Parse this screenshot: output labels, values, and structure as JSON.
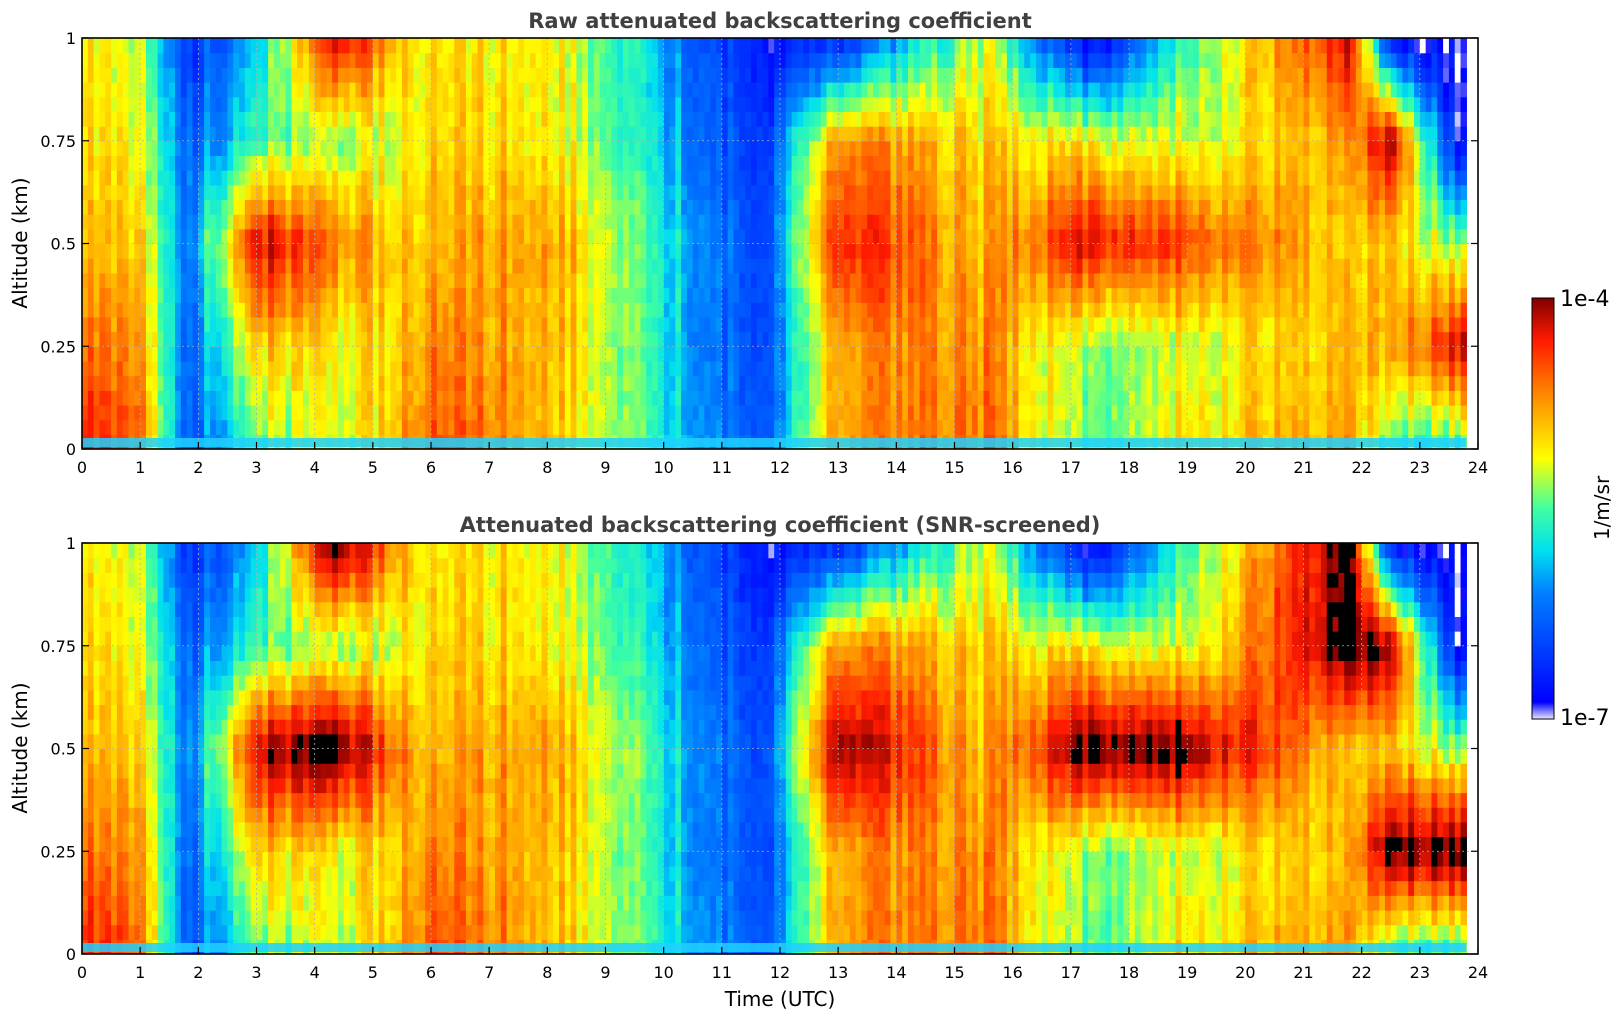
{
  "chart_data": [
    {
      "type": "heatmap",
      "title": "Raw attenuated backscattering coefficient",
      "ylabel": "Altitude (km)",
      "xlabel": "",
      "xlim": [
        0,
        24
      ],
      "ylim": [
        0,
        1
      ],
      "xticks": [
        "0",
        "1",
        "2",
        "3",
        "4",
        "5",
        "6",
        "7",
        "8",
        "9",
        "10",
        "11",
        "12",
        "13",
        "14",
        "15",
        "16",
        "17",
        "18",
        "19",
        "20",
        "21",
        "22",
        "23",
        "24"
      ],
      "yticks": [
        "0",
        "0.25",
        "0.5",
        "0.75",
        "1"
      ],
      "grid": true,
      "data_end_hour": 23.8,
      "profiles_time_utc": [
        0.0,
        1.0,
        1.8,
        3.0,
        4.4,
        6.0,
        8.0,
        11.7,
        13.0,
        15.5,
        17.3,
        19.0,
        21.8,
        22.5,
        23.7
      ],
      "profiles_log10_beta": [
        [
          -4.3,
          -4.6,
          -4.9,
          -5.0,
          -5.1
        ],
        [
          -4.5,
          -4.7,
          -4.9,
          -5.1,
          -5.2
        ],
        [
          -6.4,
          -6.3,
          -6.2,
          -6.3,
          -6.6
        ],
        [
          -5.4,
          -4.9,
          -4.1,
          -5.5,
          -5.8
        ],
        [
          -5.3,
          -5.2,
          -4.7,
          -5.4,
          -4.2
        ],
        [
          -4.5,
          -4.7,
          -4.9,
          -5.0,
          -5.1
        ],
        [
          -4.8,
          -4.8,
          -4.7,
          -5.0,
          -5.0
        ],
        [
          -6.4,
          -6.5,
          -6.5,
          -6.6,
          -6.8
        ],
        [
          -4.7,
          -4.7,
          -4.2,
          -4.6,
          -6.6
        ],
        [
          -4.6,
          -4.7,
          -4.9,
          -5.0,
          -5.2
        ],
        [
          -5.5,
          -5.4,
          -4.2,
          -5.1,
          -7.0
        ],
        [
          -5.0,
          -5.2,
          -4.4,
          -5.2,
          -5.5
        ],
        [
          -4.8,
          -4.9,
          -5.0,
          -4.8,
          -4.2
        ],
        [
          -5.5,
          -4.8,
          -4.9,
          -4.0,
          -6.8
        ],
        [
          -5.6,
          -4.2,
          -5.4,
          -7.0,
          -7.0
        ]
      ]
    },
    {
      "type": "heatmap",
      "title": "Attenuated backscattering coefficient (SNR-screened)",
      "ylabel": "Altitude (km)",
      "xlabel": "Time (UTC)",
      "xlim": [
        0,
        24
      ],
      "ylim": [
        0,
        1
      ],
      "xticks": [
        "0",
        "1",
        "2",
        "3",
        "4",
        "5",
        "6",
        "7",
        "8",
        "9",
        "10",
        "11",
        "12",
        "13",
        "14",
        "15",
        "16",
        "17",
        "18",
        "19",
        "20",
        "21",
        "22",
        "23",
        "24"
      ],
      "yticks": [
        "0",
        "0.25",
        "0.5",
        "0.75",
        "1"
      ],
      "grid": true,
      "data_end_hour": 23.8,
      "saturated_regions_note": "values above the colour range drawn in black",
      "profiles_time_utc": [
        0.0,
        1.0,
        1.8,
        3.0,
        4.4,
        6.0,
        8.0,
        11.7,
        13.0,
        15.5,
        17.3,
        19.0,
        21.8,
        22.5,
        23.7
      ],
      "profiles_log10_beta": [
        [
          -4.3,
          -4.6,
          -4.9,
          -5.0,
          -5.1
        ],
        [
          -4.5,
          -4.7,
          -4.9,
          -5.1,
          -5.2
        ],
        [
          -6.4,
          -6.3,
          -6.2,
          -6.3,
          -6.6
        ],
        [
          -5.4,
          -4.9,
          -4.1,
          -5.5,
          -5.8
        ],
        [
          -5.3,
          -5.2,
          -3.9,
          -5.4,
          -3.9
        ],
        [
          -4.5,
          -4.7,
          -4.9,
          -5.0,
          -5.1
        ],
        [
          -4.8,
          -4.8,
          -4.7,
          -5.0,
          -5.0
        ],
        [
          -6.4,
          -6.5,
          -6.5,
          -6.6,
          -6.8
        ],
        [
          -4.7,
          -4.7,
          -3.9,
          -4.6,
          -6.6
        ],
        [
          -4.6,
          -4.7,
          -4.9,
          -5.0,
          -5.2
        ],
        [
          -5.5,
          -5.4,
          -3.9,
          -5.1,
          -7.0
        ],
        [
          -5.0,
          -5.2,
          -3.9,
          -5.2,
          -5.5
        ],
        [
          -4.8,
          -4.9,
          -5.0,
          -3.9,
          -3.9
        ],
        [
          -5.5,
          -3.9,
          -4.9,
          -4.0,
          -6.8
        ],
        [
          -5.6,
          -3.9,
          -5.4,
          -7.0,
          -7.0
        ]
      ]
    }
  ],
  "colorbar": {
    "label": "1/m/sr",
    "max_label": "1e-4",
    "min_label": "1e-7",
    "log10_range": [
      -7,
      -4
    ],
    "colormap": "jet",
    "below_min_color": "#ffffff",
    "above_max_color": "#000000"
  }
}
